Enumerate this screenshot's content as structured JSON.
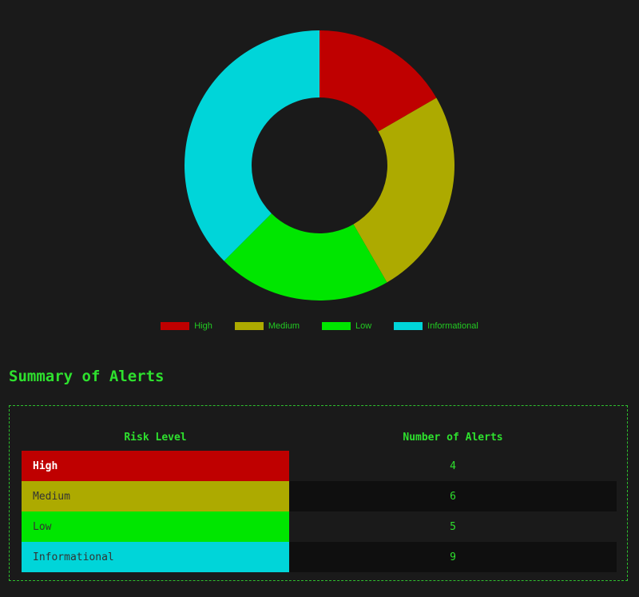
{
  "chart_data": {
    "type": "pie",
    "variant": "doughnut",
    "categories": [
      "High",
      "Medium",
      "Low",
      "Informational"
    ],
    "values": [
      4,
      6,
      5,
      9
    ],
    "colors": [
      "#bf0000",
      "#adaa00",
      "#00e600",
      "#00d5d9"
    ],
    "legend_position": "bottom"
  },
  "summary": {
    "title": "Summary of Alerts",
    "headers": [
      "Risk Level",
      "Number of Alerts"
    ],
    "rows": [
      {
        "level": "High",
        "count": "4",
        "color": "#bf0000",
        "text_color": "#ffffff"
      },
      {
        "level": "Medium",
        "count": "6",
        "color": "#adaa00",
        "text_color": "#333333"
      },
      {
        "level": "Low",
        "count": "5",
        "color": "#00e600",
        "text_color": "#333333"
      },
      {
        "level": "Informational",
        "count": "9",
        "color": "#00d5d9",
        "text_color": "#333333"
      }
    ]
  }
}
